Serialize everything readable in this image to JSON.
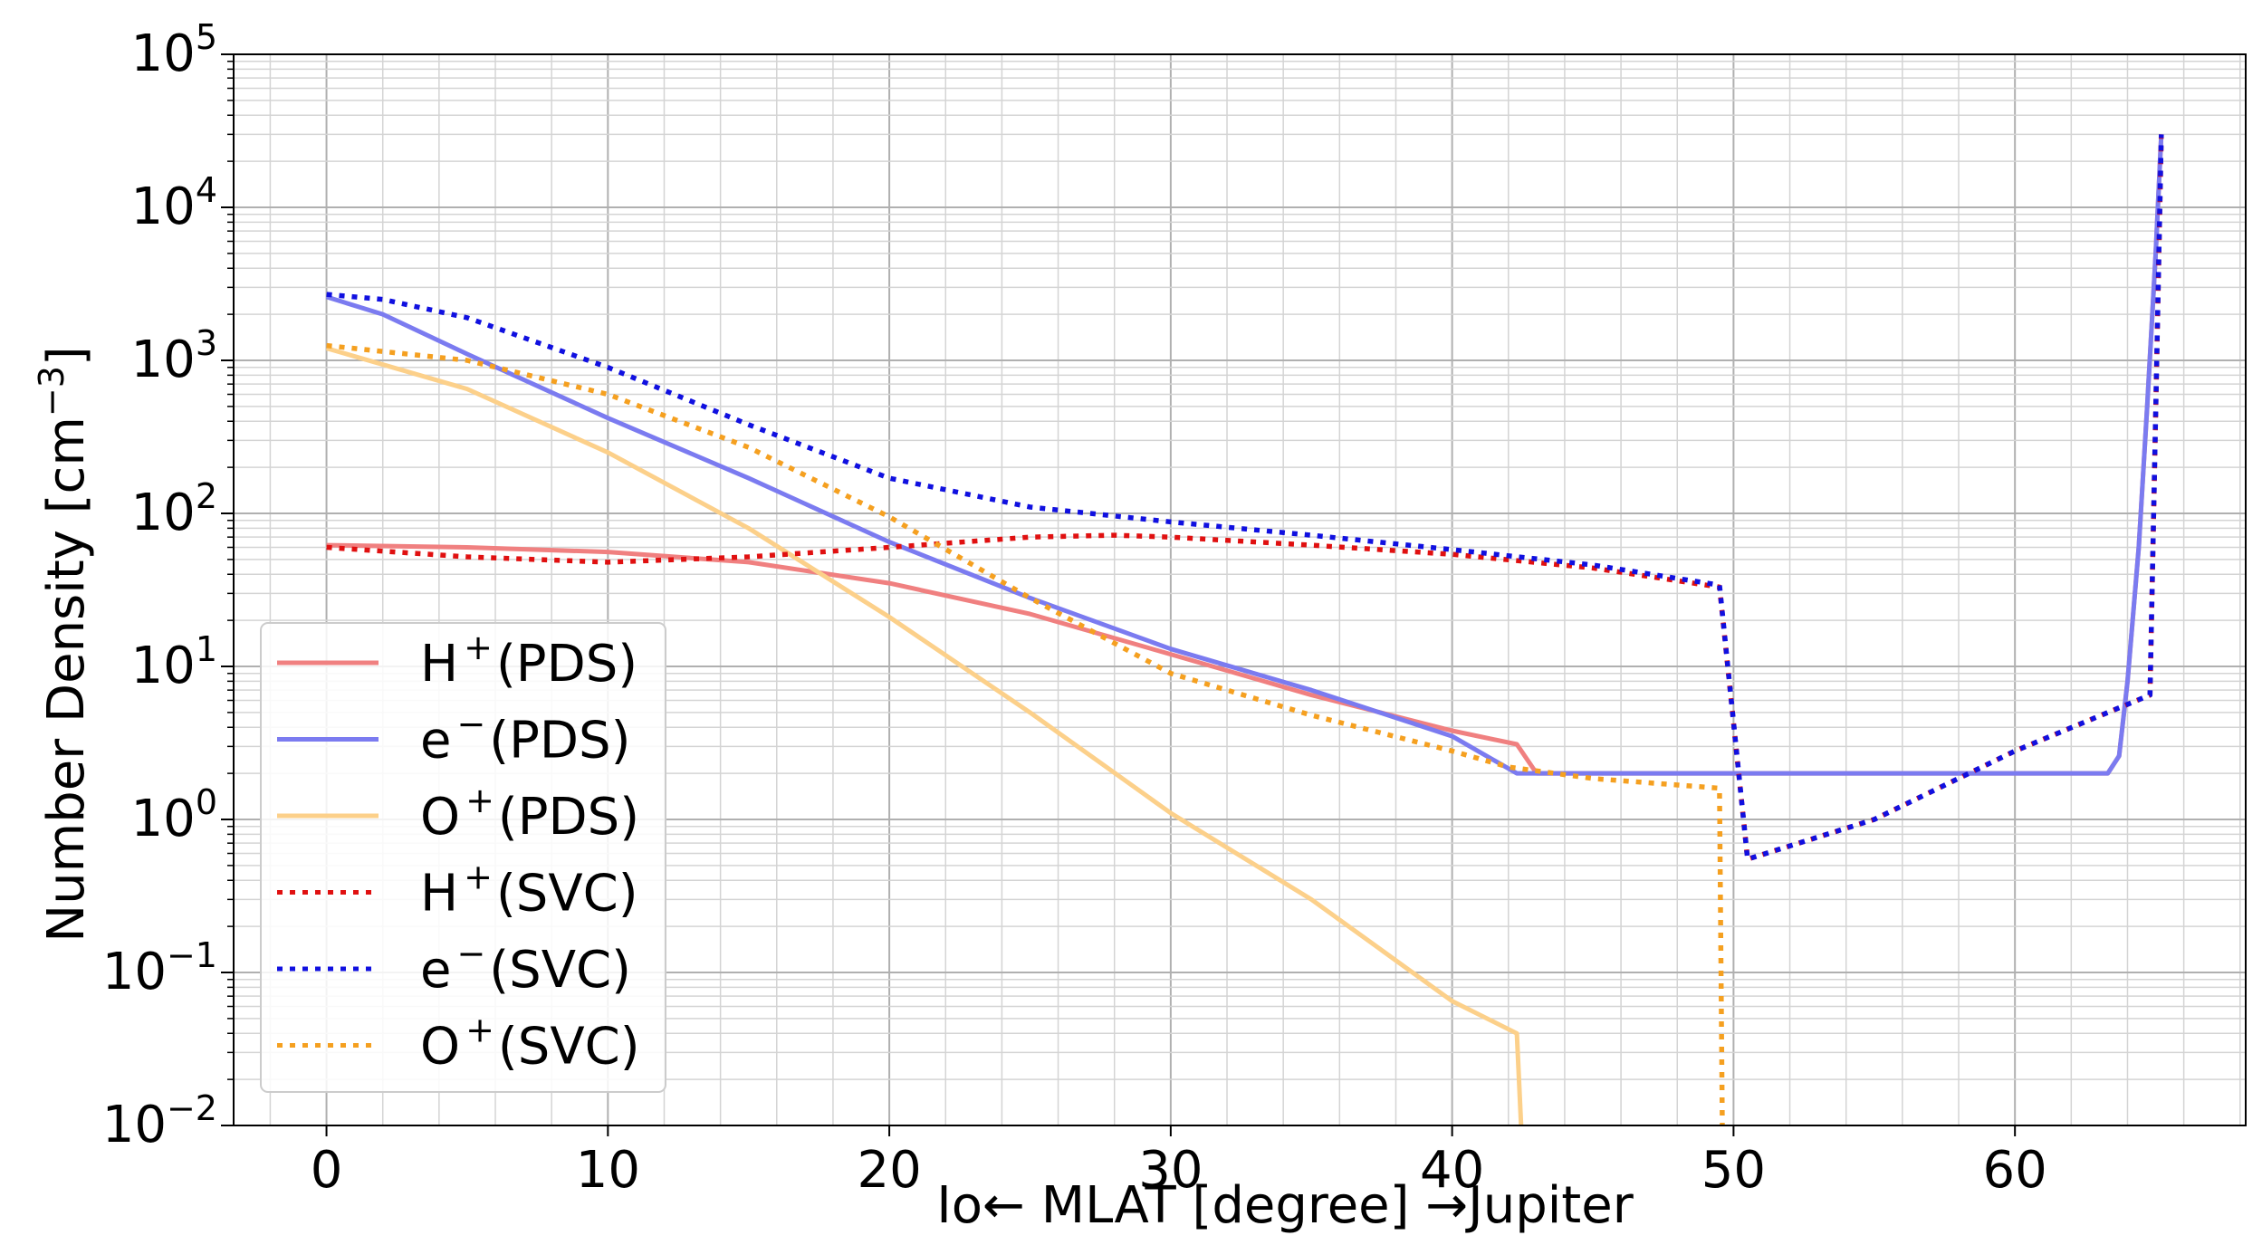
{
  "chart_data": {
    "type": "line",
    "xlabel": "Io← MLAT [degree] →Jupiter",
    "ylabel": "Number Density [cm",
    "ylabel_unit_exponent": "−3",
    "ylabel_close": "]",
    "xlim": [
      -3.3,
      68.2
    ],
    "ylim": [
      0.01,
      100000
    ],
    "yscale": "log",
    "grid": true,
    "legend_position": "lower-left",
    "xticks": [
      0,
      10,
      20,
      30,
      40,
      50,
      60
    ],
    "yticks": [
      {
        "value": 0.01,
        "base": "10",
        "exp": "−2"
      },
      {
        "value": 0.1,
        "base": "10",
        "exp": "−1"
      },
      {
        "value": 1,
        "base": "10",
        "exp": "0"
      },
      {
        "value": 10,
        "base": "10",
        "exp": "1"
      },
      {
        "value": 100,
        "base": "10",
        "exp": "2"
      },
      {
        "value": 1000,
        "base": "10",
        "exp": "3"
      },
      {
        "value": 10000,
        "base": "10",
        "exp": "4"
      },
      {
        "value": 100000,
        "base": "10",
        "exp": "5"
      }
    ],
    "series": [
      {
        "label_main": "H",
        "label_sup": "+",
        "label_tag": "(PDS)",
        "color": "#f08080",
        "dash": "solid",
        "points": [
          [
            0,
            62
          ],
          [
            5,
            60
          ],
          [
            10,
            56
          ],
          [
            15,
            48
          ],
          [
            20,
            35
          ],
          [
            25,
            22
          ],
          [
            30,
            12
          ],
          [
            35,
            6.5
          ],
          [
            40,
            3.8
          ],
          [
            42.3,
            3.1
          ],
          [
            43.0,
            2.0
          ],
          [
            50,
            2.0
          ],
          [
            55,
            2.0
          ],
          [
            60,
            2.0
          ],
          [
            63.3,
            2.0
          ],
          [
            63.7,
            2.6
          ],
          [
            64.0,
            8
          ],
          [
            64.4,
            60
          ],
          [
            64.7,
            500
          ],
          [
            65.0,
            5000
          ],
          [
            65.2,
            30000
          ]
        ]
      },
      {
        "label_main": "e",
        "label_sup": "−",
        "label_tag": "(PDS)",
        "color": "#7b7bf0",
        "dash": "solid",
        "points": [
          [
            0,
            2600
          ],
          [
            2,
            2000
          ],
          [
            5,
            1100
          ],
          [
            10,
            420
          ],
          [
            15,
            170
          ],
          [
            20,
            65
          ],
          [
            25,
            28
          ],
          [
            30,
            13
          ],
          [
            35,
            7
          ],
          [
            40,
            3.5
          ],
          [
            42.3,
            2.0
          ],
          [
            43,
            2.0
          ],
          [
            50,
            2.0
          ],
          [
            55,
            2.0
          ],
          [
            60,
            2.0
          ],
          [
            63.3,
            2.0
          ],
          [
            63.7,
            2.6
          ],
          [
            64.0,
            8
          ],
          [
            64.4,
            60
          ],
          [
            64.7,
            500
          ],
          [
            65.0,
            5000
          ],
          [
            65.2,
            30000
          ]
        ]
      },
      {
        "label_main": "O",
        "label_sup": "+",
        "label_tag": "(PDS)",
        "color": "#fcd08a",
        "dash": "solid",
        "points": [
          [
            0,
            1200
          ],
          [
            5,
            650
          ],
          [
            10,
            250
          ],
          [
            15,
            80
          ],
          [
            20,
            21
          ],
          [
            25,
            5
          ],
          [
            30,
            1.1
          ],
          [
            35,
            0.3
          ],
          [
            40,
            0.065
          ],
          [
            42.3,
            0.04
          ],
          [
            42.45,
            0.01
          ]
        ]
      },
      {
        "label_main": "H",
        "label_sup": "+",
        "label_tag": "(SVC)",
        "color": "#e01010",
        "dash": "dotted",
        "points": [
          [
            0,
            60
          ],
          [
            5,
            52
          ],
          [
            10,
            48
          ],
          [
            15,
            52
          ],
          [
            20,
            60
          ],
          [
            25,
            70
          ],
          [
            28,
            72
          ],
          [
            30,
            70
          ],
          [
            35,
            62
          ],
          [
            40,
            54
          ],
          [
            45,
            44
          ],
          [
            49.5,
            33
          ],
          [
            50.5,
            0.55
          ],
          [
            55,
            1.0
          ],
          [
            60,
            2.8
          ],
          [
            64.8,
            6.5
          ],
          [
            65.2,
            30000
          ]
        ]
      },
      {
        "label_main": "e",
        "label_sup": "−",
        "label_tag": "(SVC)",
        "color": "#1010e0",
        "dash": "dotted",
        "points": [
          [
            0,
            2700
          ],
          [
            2,
            2500
          ],
          [
            5,
            1900
          ],
          [
            10,
            900
          ],
          [
            15,
            380
          ],
          [
            20,
            170
          ],
          [
            25,
            110
          ],
          [
            30,
            88
          ],
          [
            35,
            72
          ],
          [
            40,
            58
          ],
          [
            45,
            46
          ],
          [
            49.5,
            34
          ],
          [
            50.5,
            0.55
          ],
          [
            55,
            1.0
          ],
          [
            60,
            2.8
          ],
          [
            64.8,
            6.5
          ],
          [
            65.2,
            30000
          ]
        ]
      },
      {
        "label_main": "O",
        "label_sup": "+",
        "label_tag": "(SVC)",
        "color": "#f5a020",
        "dash": "dotted",
        "points": [
          [
            0,
            1250
          ],
          [
            5,
            1000
          ],
          [
            10,
            600
          ],
          [
            15,
            270
          ],
          [
            20,
            95
          ],
          [
            25,
            28
          ],
          [
            30,
            9
          ],
          [
            35,
            4.8
          ],
          [
            40,
            2.8
          ],
          [
            42,
            2.2
          ],
          [
            45,
            1.85
          ],
          [
            49.5,
            1.6
          ],
          [
            49.6,
            0.01
          ]
        ]
      }
    ]
  }
}
